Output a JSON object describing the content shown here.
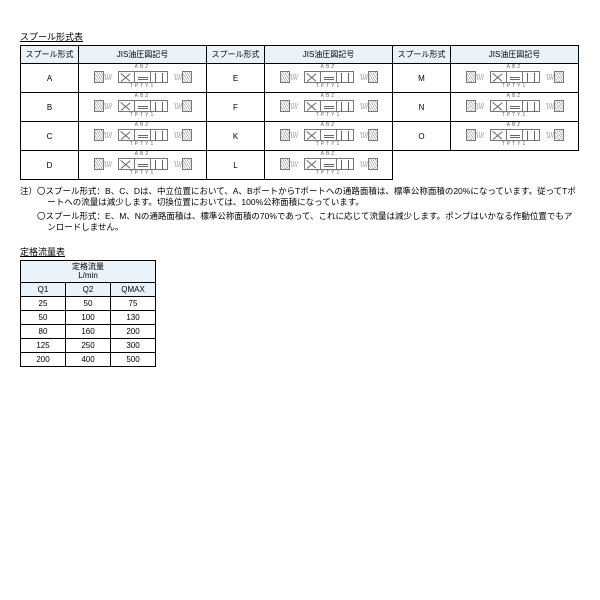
{
  "spool": {
    "title": "スプール形式表",
    "header_type": "スプール形式",
    "header_symbol": "JIS油圧図記号",
    "diagram_top": "ABZ",
    "diagram_bottom": "TPTY1",
    "groups": [
      {
        "items": [
          "A",
          "B",
          "C",
          "D"
        ]
      },
      {
        "items": [
          "E",
          "F",
          "K",
          "L"
        ]
      },
      {
        "items": [
          "M",
          "N",
          "O"
        ]
      }
    ],
    "colors": {
      "header_bg": "#eaf3f9",
      "border": "#000000",
      "diagram_line": "#666666"
    }
  },
  "notes": {
    "prefix": "注）",
    "bullet": "〇",
    "line1": "スプール形式：B、C、Dは、中立位置において、A、BポートからTポートへの通路面積は、標準公称面積の20%になっています。従ってTポートへの流量は減少します。切換位置においては、100%公称面積になっています。",
    "line2": "スプール形式：E、M、Nの通路面積は、標準公称面積の70%であって、これに応じて流量は減少します。ポンプはいかなる作動位置でもアンロードしません。"
  },
  "flow": {
    "title": "定格流量表",
    "header_top": "定格流量",
    "header_unit": "L/min",
    "columns": [
      "Q1",
      "Q2",
      "QMAX"
    ],
    "rows": [
      [
        25,
        50,
        75
      ],
      [
        50,
        100,
        130
      ],
      [
        80,
        160,
        200
      ],
      [
        125,
        250,
        300
      ],
      [
        200,
        400,
        500
      ]
    ],
    "colors": {
      "header_bg": "#eaf3f9"
    }
  }
}
